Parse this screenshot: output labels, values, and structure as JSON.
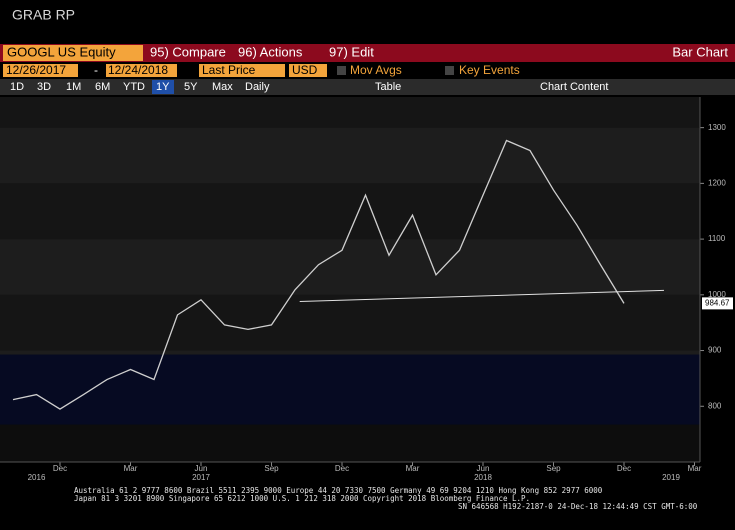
{
  "header": {
    "title": "GRAB RP"
  },
  "command_bar": {
    "security": "GOOGL US Equity",
    "compare": "95) Compare",
    "actions": "96) Actions",
    "edit": "97) Edit",
    "function": "Bar Chart"
  },
  "settings_bar": {
    "start_date": "12/26/2017",
    "separator": "-",
    "end_date": "12/24/2018",
    "field": "Last Price",
    "currency": "USD",
    "mov_avgs": "Mov Avgs",
    "key_events": "Key Events"
  },
  "range_bar": {
    "ranges": [
      "1D",
      "3D",
      "1M",
      "6M",
      "YTD",
      "1Y",
      "5Y",
      "Max"
    ],
    "selected": "1Y",
    "frequency": "Daily",
    "table": "Table",
    "chart_content": "Chart Content"
  },
  "footer": {
    "line1": "Australia 61 2 9777 8600 Brazil 5511 2395 9000 Europe 44 20 7330 7500 Germany 49 69 9204 1210 Hong Kong 852 2977 6000",
    "line2": "Japan 81 3 3201 8900        Singapore 65 6212 1000        U.S. 1 212 318 2000        Copyright 2018 Bloomberg Finance L.P.",
    "line3": "SN 646568 H192-2187-0 24-Dec-18 12:44:49 CST  GMT-6:00"
  },
  "chart_data": {
    "type": "line",
    "categories": [
      null,
      null,
      "Dec",
      null,
      null,
      "Mar",
      null,
      null,
      "Jun",
      null,
      null,
      "Sep",
      null,
      null,
      "Dec",
      null,
      null,
      "Mar",
      null,
      null,
      "Jun",
      null,
      null,
      "Sep",
      null,
      null,
      "Dec",
      null,
      null,
      "Mar"
    ],
    "year_labels": [
      null,
      "2016",
      null,
      null,
      null,
      null,
      null,
      null,
      "2017",
      null,
      null,
      null,
      null,
      null,
      null,
      null,
      null,
      null,
      null,
      null,
      "2018",
      null,
      null,
      null,
      null,
      null,
      null,
      null,
      "2019",
      null
    ],
    "series": [
      {
        "name": "GOOGL US Equity",
        "color": "#cfcfcf",
        "values": [
          812,
          821,
          795,
          821,
          848,
          866,
          848,
          964,
          991,
          946,
          938,
          946,
          1009,
          1054,
          1080,
          1179,
          1071,
          1143,
          1036,
          1080,
          1179,
          1277,
          1259,
          1188,
          1125,
          1054,
          984.67,
          null,
          null,
          null
        ]
      }
    ],
    "trendline": {
      "x": [
        12.2,
        27.7
      ],
      "y": [
        988,
        1008
      ],
      "color": "#e0e0e0"
    },
    "ylim": [
      700,
      1355
    ],
    "yticks": [
      800,
      900,
      1000,
      1100,
      1200,
      1300
    ],
    "y_axis_side": "right"
  }
}
